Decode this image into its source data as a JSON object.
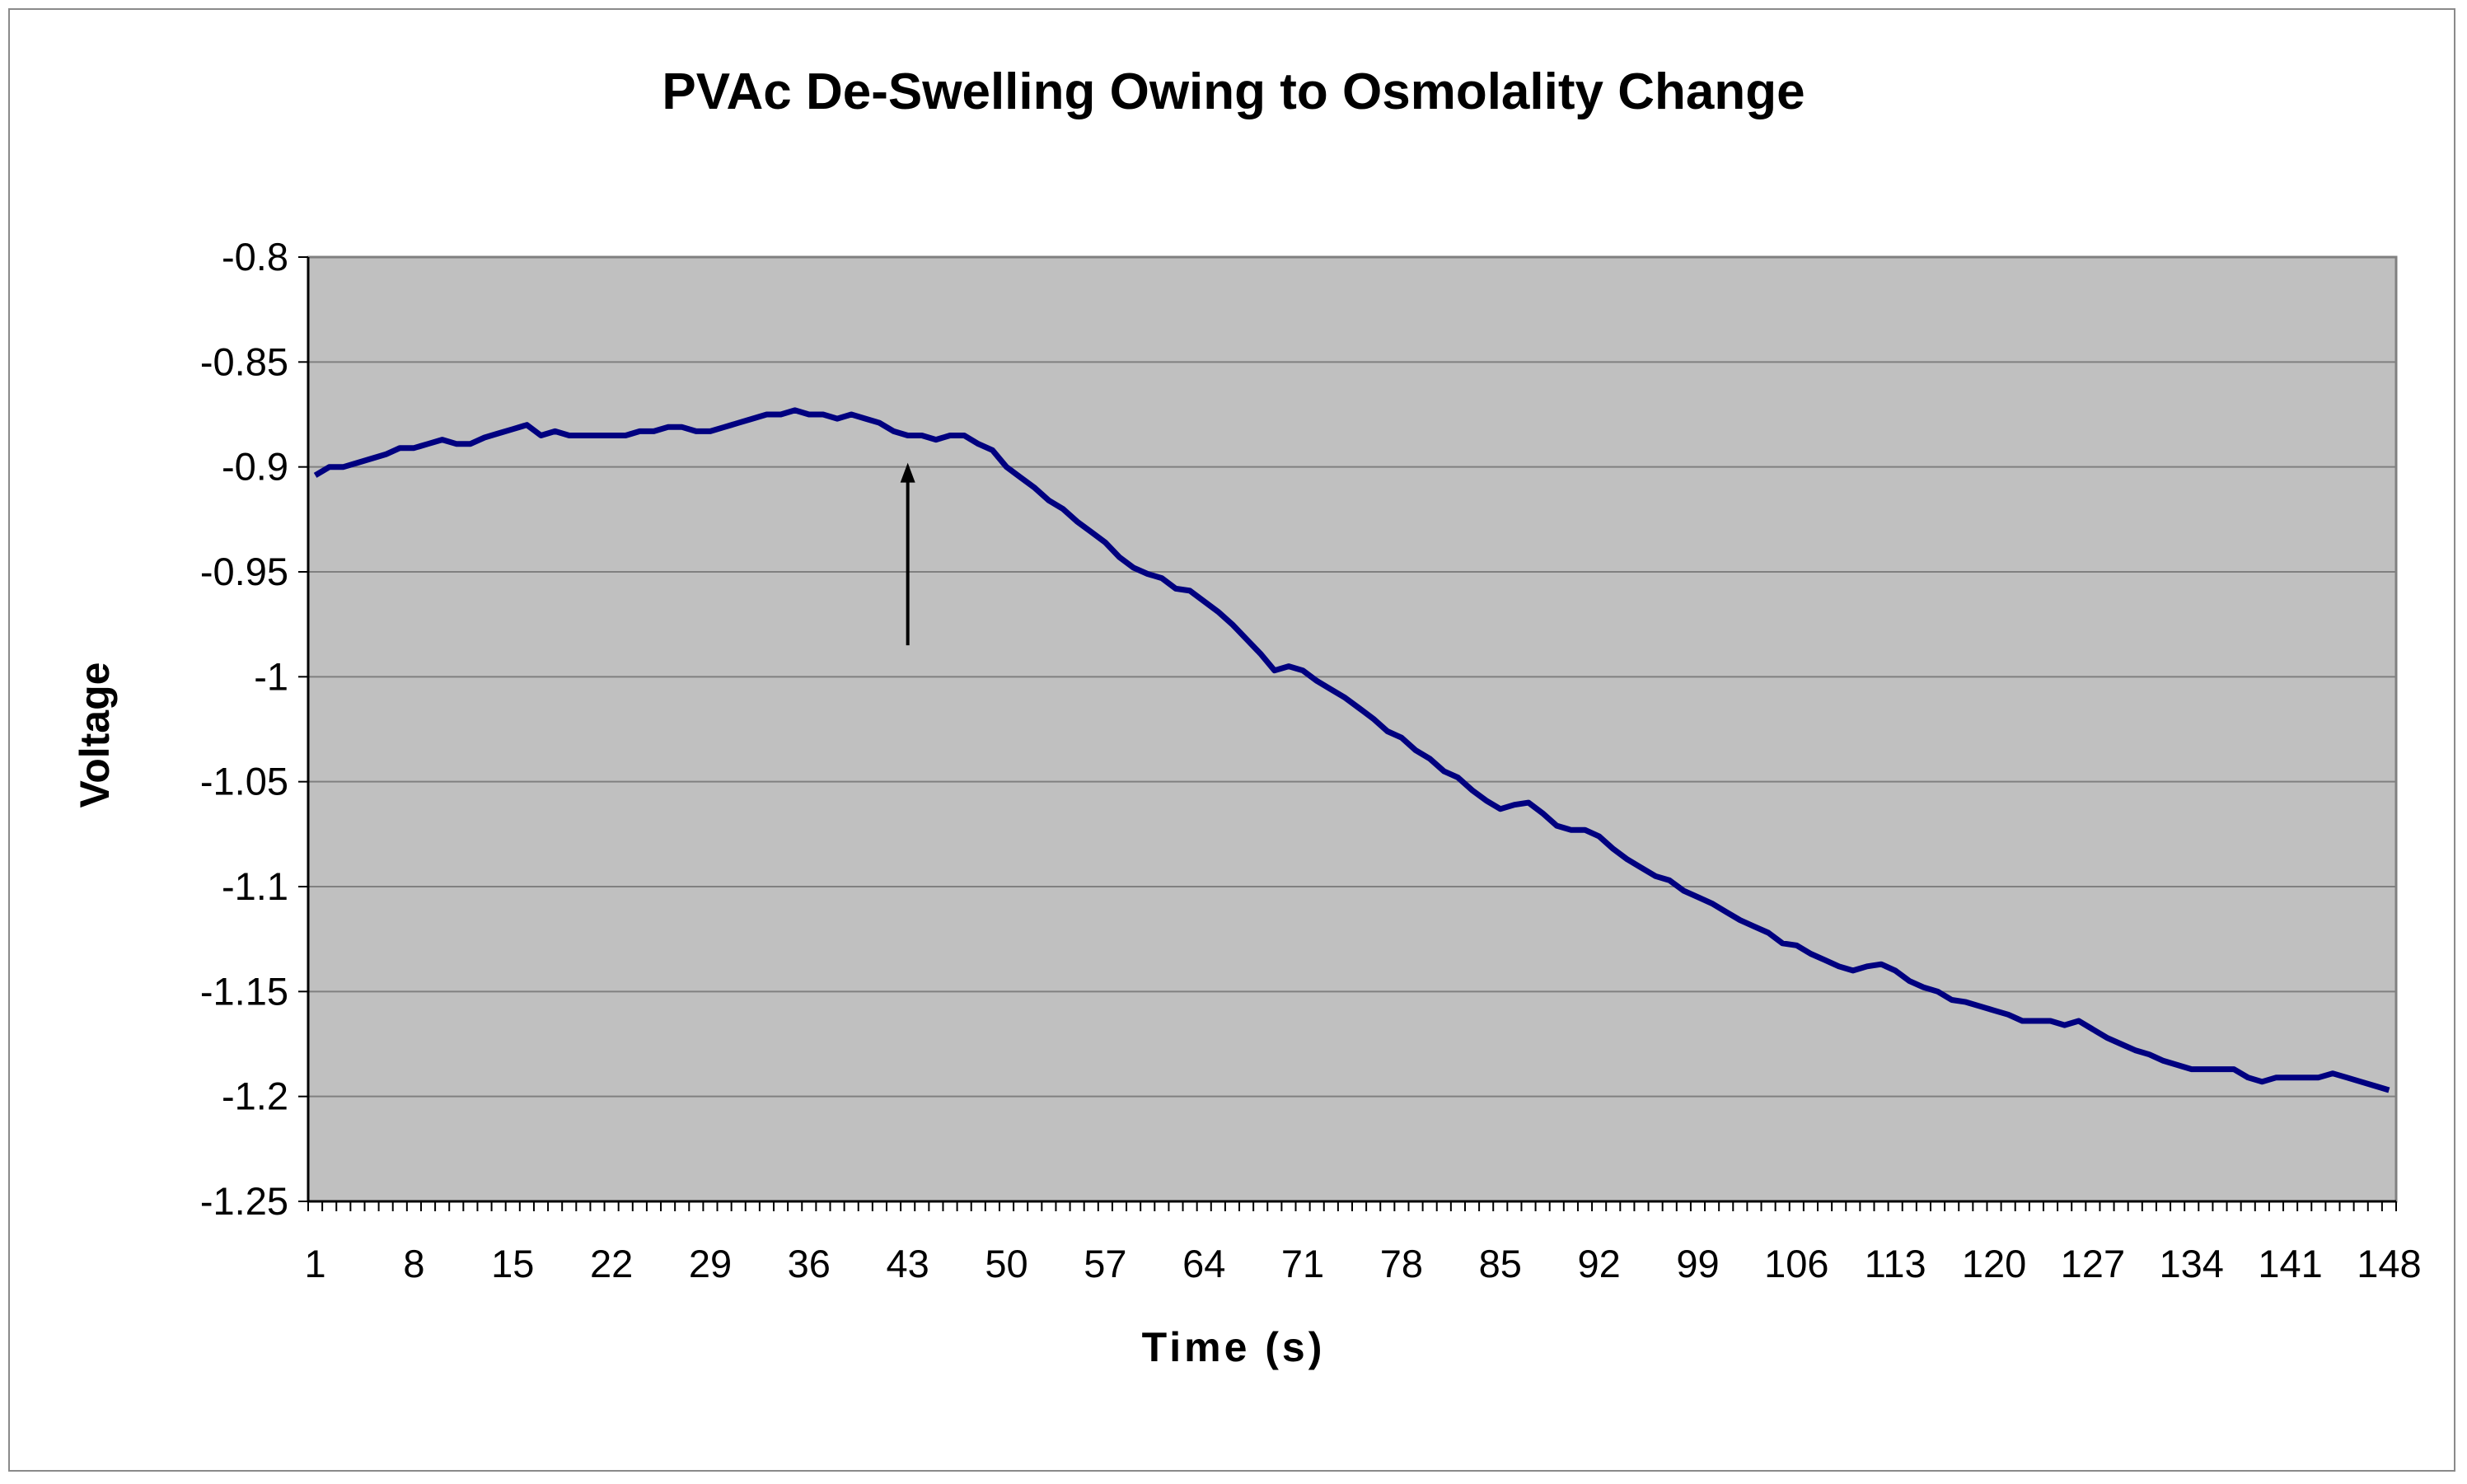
{
  "chart_data": {
    "type": "line",
    "title": "PVAc De-Swelling Owing to Osmolality Change",
    "xlabel": "Time (s)",
    "ylabel": "Voltage",
    "ylim": [
      -1.25,
      -0.8
    ],
    "yticks": [
      "-0.8",
      "-0.85",
      "-0.9",
      "-0.95",
      "-1",
      "-1.05",
      "-1.1",
      "-1.15",
      "-1.2",
      "-1.25"
    ],
    "ytick_values": [
      -0.8,
      -0.85,
      -0.9,
      -0.95,
      -1,
      -1.05,
      -1.1,
      -1.15,
      -1.2,
      -1.25
    ],
    "xticks": [
      "1",
      "8",
      "15",
      "22",
      "29",
      "36",
      "43",
      "50",
      "57",
      "64",
      "71",
      "78",
      "85",
      "92",
      "99",
      "106",
      "113",
      "120",
      "127",
      "134",
      "141",
      "148"
    ],
    "x_range": [
      1,
      148
    ],
    "grid": "horizontal",
    "plot_background": "#c0c0c0",
    "line_color": "#000080",
    "annotation": {
      "type": "arrow",
      "x": 43,
      "y_from": -0.985,
      "y_to": -0.898
    },
    "series": [
      {
        "x": [
          1,
          2,
          3,
          4,
          5,
          6,
          7,
          8,
          9,
          10,
          11,
          12,
          13,
          14,
          15,
          16,
          17,
          18,
          19,
          20,
          21,
          22,
          23,
          24,
          25,
          26,
          27,
          28,
          29,
          30,
          31,
          32,
          33,
          34,
          35,
          36,
          37,
          38,
          39,
          40,
          41,
          42,
          43,
          44,
          45,
          46,
          47,
          48,
          49,
          50,
          51,
          52,
          53,
          54,
          55,
          56,
          57,
          58,
          59,
          60,
          61,
          62,
          63,
          64,
          65,
          66,
          67,
          68,
          69,
          70,
          71,
          72,
          73,
          74,
          75,
          76,
          77,
          78,
          79,
          80,
          81,
          82,
          83,
          84,
          85,
          86,
          87,
          88,
          89,
          90,
          91,
          92,
          93,
          94,
          95,
          96,
          97,
          98,
          99,
          100,
          101,
          102,
          103,
          104,
          105,
          106,
          107,
          108,
          109,
          110,
          111,
          112,
          113,
          114,
          115,
          116,
          117,
          118,
          119,
          120,
          121,
          122,
          123,
          124,
          125,
          126,
          127,
          128,
          129,
          130,
          131,
          132,
          133,
          134,
          135,
          136,
          137,
          138,
          139,
          140,
          141,
          142,
          143,
          144,
          145,
          146,
          147,
          148
        ],
        "values": [
          -0.904,
          -0.9,
          -0.9,
          -0.898,
          -0.896,
          -0.894,
          -0.891,
          -0.891,
          -0.889,
          -0.887,
          -0.889,
          -0.889,
          -0.886,
          -0.884,
          -0.882,
          -0.88,
          -0.885,
          -0.883,
          -0.885,
          -0.885,
          -0.885,
          -0.885,
          -0.885,
          -0.883,
          -0.883,
          -0.881,
          -0.881,
          -0.883,
          -0.883,
          -0.881,
          -0.879,
          -0.877,
          -0.875,
          -0.875,
          -0.873,
          -0.875,
          -0.875,
          -0.877,
          -0.875,
          -0.877,
          -0.879,
          -0.883,
          -0.885,
          -0.885,
          -0.887,
          -0.885,
          -0.885,
          -0.889,
          -0.892,
          -0.9,
          -0.905,
          -0.91,
          -0.916,
          -0.92,
          -0.926,
          -0.931,
          -0.936,
          -0.943,
          -0.948,
          -0.951,
          -0.953,
          -0.958,
          -0.959,
          -0.964,
          -0.969,
          -0.975,
          -0.982,
          -0.989,
          -0.997,
          -0.995,
          -0.997,
          -1.002,
          -1.006,
          -1.01,
          -1.015,
          -1.02,
          -1.026,
          -1.029,
          -1.035,
          -1.039,
          -1.045,
          -1.048,
          -1.054,
          -1.059,
          -1.063,
          -1.061,
          -1.06,
          -1.065,
          -1.071,
          -1.073,
          -1.073,
          -1.076,
          -1.082,
          -1.087,
          -1.091,
          -1.095,
          -1.097,
          -1.102,
          -1.105,
          -1.108,
          -1.112,
          -1.116,
          -1.119,
          -1.122,
          -1.127,
          -1.128,
          -1.132,
          -1.135,
          -1.138,
          -1.14,
          -1.138,
          -1.137,
          -1.14,
          -1.145,
          -1.148,
          -1.15,
          -1.154,
          -1.155,
          -1.157,
          -1.159,
          -1.161,
          -1.164,
          -1.164,
          -1.164,
          -1.166,
          -1.164,
          -1.168,
          -1.172,
          -1.175,
          -1.178,
          -1.18,
          -1.183,
          -1.185,
          -1.187,
          -1.187,
          -1.187,
          -1.187,
          -1.191,
          -1.193,
          -1.191,
          -1.191,
          -1.191,
          -1.191,
          -1.189,
          -1.191,
          -1.193,
          -1.195,
          -1.197
        ]
      }
    ]
  }
}
